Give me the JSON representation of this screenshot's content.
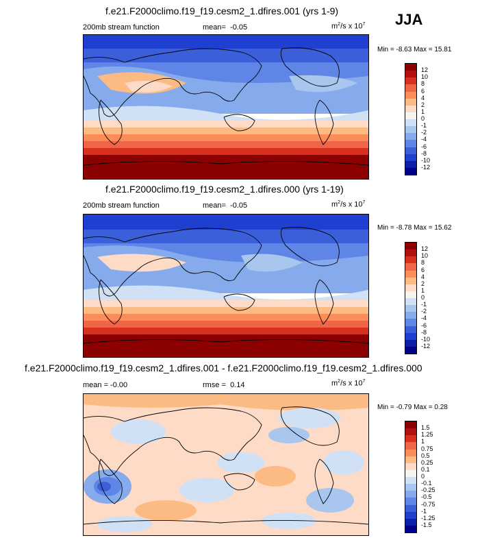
{
  "season": "JJA",
  "panels": [
    {
      "title": "f.e21.F2000climo.f19_f19.cesm2_1.dfires.001 (yrs 1-9)",
      "left_label": "200mb stream function",
      "mean_label": "mean=",
      "mean_value": "-0.05",
      "units_base": "m",
      "units_exp1": "2",
      "units_mid": "/s x 10",
      "units_exp2": "7",
      "minmax": "Min = -8.63 Max = 15.81",
      "colorbar_labels": [
        "12",
        "10",
        "8",
        "6",
        "4",
        "2",
        "1",
        "0",
        "-1",
        "-2",
        "-4",
        "-6",
        "-8",
        "-10",
        "-12"
      ],
      "colorbar_colors": [
        "#8b0000",
        "#b40f0f",
        "#d7301f",
        "#ef6548",
        "#fc8d59",
        "#fdbb84",
        "#fddbc7",
        "#f7f4f0",
        "#d1e1f5",
        "#a9c6ef",
        "#86abec",
        "#5f86e6",
        "#3a5fd9",
        "#1f3fd0",
        "#0d1fa8",
        "#00008b"
      ]
    },
    {
      "title": "f.e21.F2000climo.f19_f19.cesm2_1.dfires.000 (yrs 1-19)",
      "left_label": "200mb stream function",
      "mean_label": "mean=",
      "mean_value": "-0.05",
      "units_base": "m",
      "units_exp1": "2",
      "units_mid": "/s x 10",
      "units_exp2": "7",
      "minmax": "Min = -8.78 Max = 15.62",
      "colorbar_labels": [
        "12",
        "10",
        "8",
        "6",
        "4",
        "2",
        "1",
        "0",
        "-1",
        "-2",
        "-4",
        "-6",
        "-8",
        "-10",
        "-12"
      ],
      "colorbar_colors": [
        "#8b0000",
        "#b40f0f",
        "#d7301f",
        "#ef6548",
        "#fc8d59",
        "#fdbb84",
        "#fddbc7",
        "#f7f4f0",
        "#d1e1f5",
        "#a9c6ef",
        "#86abec",
        "#5f86e6",
        "#3a5fd9",
        "#1f3fd0",
        "#0d1fa8",
        "#00008b"
      ]
    },
    {
      "title": "f.e21.F2000climo.f19_f19.cesm2_1.dfires.001 - f.e21.F2000climo.f19_f19.cesm2_1.dfires.000",
      "left_label": "mean =  -0.00",
      "mid_label": "rmse =",
      "mid_value": "0.14",
      "units_base": "m",
      "units_exp1": "2",
      "units_mid": "/s x 10",
      "units_exp2": "7",
      "minmax": "Min = -0.79 Max =  0.28",
      "colorbar_labels": [
        "1.5",
        "1.25",
        "1",
        "0.75",
        "0.5",
        "0.25",
        "0.1",
        "0",
        "-0.1",
        "-0.25",
        "-0.5",
        "-0.75",
        "-1",
        "-1.25",
        "-1.5"
      ],
      "colorbar_colors": [
        "#8b0000",
        "#b40f0f",
        "#d7301f",
        "#ef6548",
        "#fc8d59",
        "#fdbb84",
        "#fddbc7",
        "#f7f4f0",
        "#d1e1f5",
        "#a9c6ef",
        "#86abec",
        "#5f86e6",
        "#3a5fd9",
        "#1f3fd0",
        "#0d1fa8",
        "#00008b"
      ]
    }
  ]
}
